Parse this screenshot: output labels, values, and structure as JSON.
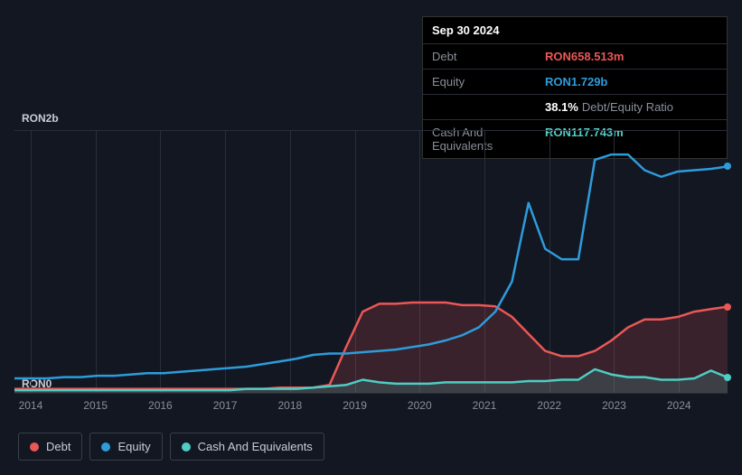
{
  "info": {
    "date": "Sep 30 2024",
    "rows": [
      {
        "label": "Debt",
        "value": "RON658.513m",
        "cls": "debt"
      },
      {
        "label": "Equity",
        "value": "RON1.729b",
        "cls": "equity"
      },
      {
        "label": "",
        "value": "38.1%",
        "suffix": "Debt/Equity Ratio",
        "cls": "ratio"
      },
      {
        "label": "Cash And Equivalents",
        "value": "RON117.743m",
        "cls": "cash"
      }
    ]
  },
  "chart": {
    "y_top_label": "RON2b",
    "y_bot_label": "RON0",
    "y_max": 2.0,
    "x_labels": [
      "2014",
      "2015",
      "2016",
      "2017",
      "2018",
      "2019",
      "2020",
      "2021",
      "2022",
      "2023",
      "2024"
    ],
    "background": "#131722",
    "grid_color": "#2a2e39",
    "series": {
      "debt": {
        "label": "Debt",
        "color": "#eb5757",
        "fill": "rgba(235,87,87,0.18)",
        "values": [
          0.03,
          0.03,
          0.03,
          0.03,
          0.03,
          0.03,
          0.03,
          0.03,
          0.03,
          0.03,
          0.03,
          0.03,
          0.03,
          0.03,
          0.03,
          0.03,
          0.04,
          0.04,
          0.04,
          0.06,
          0.35,
          0.62,
          0.68,
          0.68,
          0.69,
          0.69,
          0.69,
          0.67,
          0.67,
          0.66,
          0.58,
          0.45,
          0.32,
          0.28,
          0.28,
          0.32,
          0.4,
          0.5,
          0.56,
          0.56,
          0.58,
          0.62,
          0.64,
          0.658
        ]
      },
      "equity": {
        "label": "Equity",
        "color": "#2d9cdb",
        "fill": "none",
        "values": [
          0.11,
          0.11,
          0.11,
          0.12,
          0.12,
          0.13,
          0.13,
          0.14,
          0.15,
          0.15,
          0.16,
          0.17,
          0.18,
          0.19,
          0.2,
          0.22,
          0.24,
          0.26,
          0.29,
          0.3,
          0.3,
          0.31,
          0.32,
          0.33,
          0.35,
          0.37,
          0.4,
          0.44,
          0.5,
          0.62,
          0.85,
          1.45,
          1.1,
          1.02,
          1.02,
          1.78,
          1.82,
          1.82,
          1.7,
          1.65,
          1.69,
          1.7,
          1.71,
          1.729
        ]
      },
      "cash": {
        "label": "Cash And Equivalents",
        "color": "#4ecdc4",
        "fill": "rgba(78,205,196,0.18)",
        "values": [
          0.02,
          0.02,
          0.02,
          0.02,
          0.02,
          0.02,
          0.02,
          0.02,
          0.02,
          0.02,
          0.02,
          0.02,
          0.02,
          0.02,
          0.03,
          0.03,
          0.03,
          0.03,
          0.04,
          0.05,
          0.06,
          0.1,
          0.08,
          0.07,
          0.07,
          0.07,
          0.08,
          0.08,
          0.08,
          0.08,
          0.08,
          0.09,
          0.09,
          0.1,
          0.1,
          0.18,
          0.14,
          0.12,
          0.12,
          0.1,
          0.1,
          0.11,
          0.17,
          0.118
        ]
      }
    }
  },
  "legend": [
    {
      "key": "debt",
      "label": "Debt",
      "color": "#eb5757"
    },
    {
      "key": "equity",
      "label": "Equity",
      "color": "#2d9cdb"
    },
    {
      "key": "cash",
      "label": "Cash And Equivalents",
      "color": "#4ecdc4"
    }
  ]
}
